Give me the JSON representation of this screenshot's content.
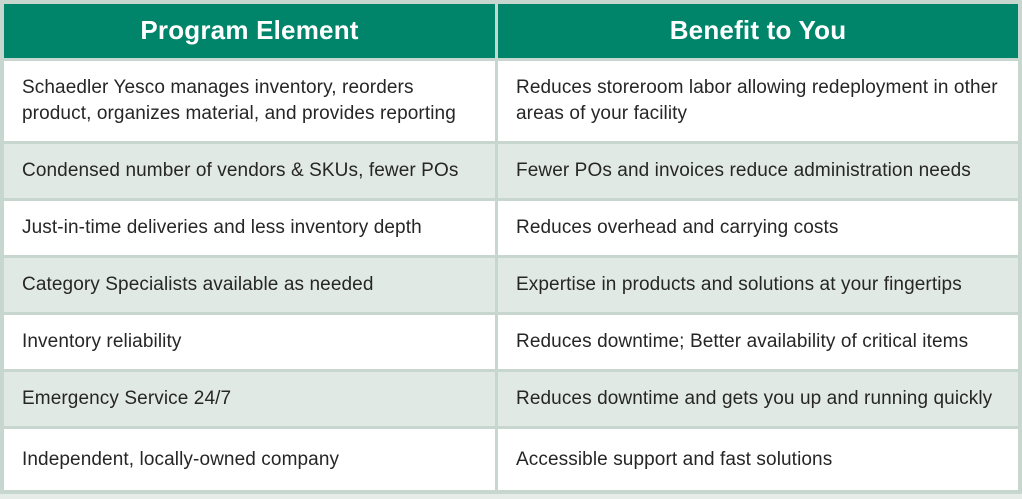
{
  "table": {
    "columns": [
      {
        "label": "Program Element"
      },
      {
        "label": "Benefit to You"
      }
    ],
    "rows": [
      {
        "program_element": "Schaedler Yesco manages inventory, reorders product, organizes material, and provides reporting",
        "benefit": "Reduces storeroom labor allowing redeployment in other areas of your facility"
      },
      {
        "program_element": "Condensed number of vendors & SKUs, fewer POs",
        "benefit": "Fewer POs and invoices reduce administration needs"
      },
      {
        "program_element": "Just-in-time deliveries and less inventory depth",
        "benefit": "Reduces overhead and carrying costs"
      },
      {
        "program_element": "Category Specialists available as needed",
        "benefit": "Expertise in products and solutions at your fingertips"
      },
      {
        "program_element": "Inventory reliability",
        "benefit": "Reduces downtime; Better availability of critical items"
      },
      {
        "program_element": "Emergency Service 24/7",
        "benefit": "Reduces downtime and gets you up and running quickly"
      },
      {
        "program_element": "Independent, locally-owned company",
        "benefit": "Accessible support and fast solutions"
      }
    ],
    "colors": {
      "header_background": "#00856a",
      "header_text": "#ffffff",
      "row_shaded_background": "#e1e9e5",
      "row_white_background": "#ffffff",
      "border": "#c7d7cf",
      "body_text": "#262626"
    }
  }
}
